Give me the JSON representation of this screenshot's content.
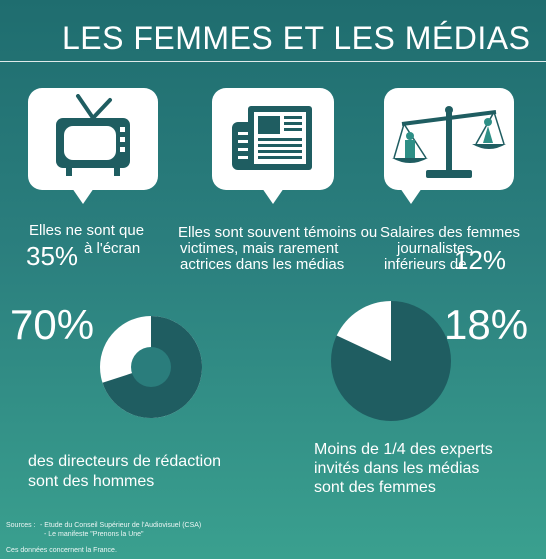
{
  "header": {
    "title": "LES FEMMES ET LES MÉDIAS"
  },
  "panels": [
    {
      "icon": "tv-icon",
      "text_line1": "Elles ne sont que",
      "big": "35%",
      "text_line2": "à l'écran"
    },
    {
      "icon": "newspaper-icon",
      "lines": [
        "Elles sont souvent témoins ou",
        "victimes, mais rarement",
        "actrices dans les médias"
      ]
    },
    {
      "icon": "scales-icon",
      "lines": [
        "Salaires des femmes",
        "journalistes",
        "inférieurs de"
      ],
      "big": "12%"
    }
  ],
  "stats": [
    {
      "value": "70%",
      "lines": [
        "des directeurs de rédaction",
        "sont des hommes"
      ],
      "chart": {
        "type": "donut",
        "share": 0.7
      }
    },
    {
      "value": "18%",
      "lines": [
        "Moins de 1/4 des experts",
        "invités dans les médias",
        "sont des femmes"
      ],
      "chart": {
        "type": "pie",
        "share": 0.18
      }
    }
  ],
  "colors": {
    "dark_teal": "#1f5d61",
    "white": "#ffffff"
  },
  "footer": {
    "sources_label": "Sources :",
    "sources": [
      "- Etude du Conseil Supérieur de l'Audiovisuel (CSA)",
      "- Le manifeste \"Prenons la Une\""
    ],
    "note": "Ces données concernent la France."
  }
}
